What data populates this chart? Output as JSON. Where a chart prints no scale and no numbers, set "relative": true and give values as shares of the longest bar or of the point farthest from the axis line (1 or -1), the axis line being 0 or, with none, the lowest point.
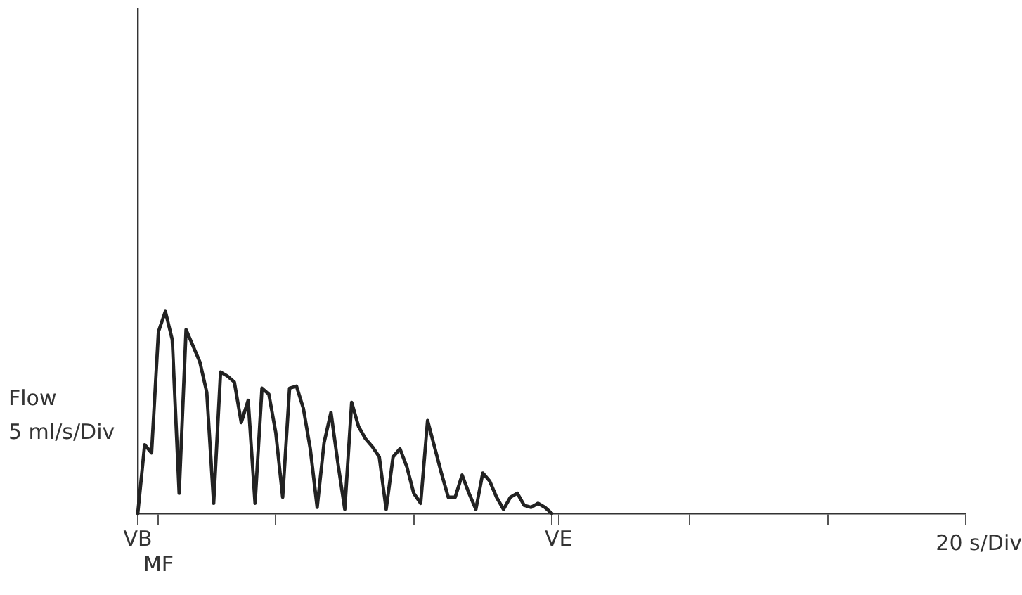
{
  "chart_data": {
    "type": "line",
    "relative": true,
    "ylabel": "Flow",
    "xlabel": "20 s/Div",
    "annotations": [
      "5 ml/s/Div"
    ],
    "color": "#222222",
    "marker": "none",
    "grid": false,
    "legend": false,
    "categories": [
      "VB",
      null,
      null,
      "MF",
      null,
      null,
      null,
      null,
      null,
      null,
      null,
      null,
      null,
      null,
      null,
      null,
      null,
      null,
      null,
      null,
      null,
      null,
      null,
      null,
      null,
      null,
      null,
      null,
      null,
      null,
      null,
      null,
      null,
      null,
      null,
      null,
      null,
      null,
      null,
      null,
      null,
      null,
      null,
      null,
      null,
      null,
      null,
      null,
      null,
      null,
      null,
      null,
      null,
      null,
      null,
      null,
      null,
      null,
      null,
      null,
      null,
      "VE",
      null,
      null,
      null,
      null,
      null,
      null,
      null,
      null,
      null,
      null,
      null,
      null,
      null,
      null,
      null,
      null,
      null,
      null,
      null,
      null,
      null,
      null,
      null,
      null,
      null,
      null,
      null,
      null,
      null,
      null,
      null,
      null,
      null,
      null,
      null,
      null,
      null,
      null,
      null,
      null,
      null,
      null,
      null,
      null,
      null,
      null,
      null,
      null,
      null,
      null,
      null,
      null,
      null,
      null,
      null,
      null,
      null,
      null,
      null
    ],
    "values": [
      0,
      0.34,
      0.3,
      0.9,
      1,
      0.86,
      0.1,
      0.91,
      0.83,
      0.75,
      0.6,
      0.05,
      0.7,
      0.68,
      0.65,
      0.45,
      0.56,
      0.05,
      0.62,
      0.59,
      0.4,
      0.08,
      0.62,
      0.63,
      0.52,
      0.32,
      0.03,
      0.35,
      0.5,
      0.25,
      0.02,
      0.55,
      0.43,
      0.37,
      0.33,
      0.28,
      0.02,
      0.28,
      0.32,
      0.23,
      0.1,
      0.05,
      0.46,
      0.33,
      0.2,
      0.08,
      0.08,
      0.19,
      0.1,
      0.02,
      0.2,
      0.16,
      0.08,
      0.02,
      0.08,
      0.1,
      0.04,
      0.03,
      0.05,
      0.03,
      0,
      null,
      null,
      null,
      null,
      null,
      null,
      null,
      null,
      null,
      null,
      null,
      null,
      null,
      null,
      null,
      null,
      null,
      null,
      null,
      null,
      null,
      null,
      null,
      null,
      null,
      null,
      null,
      null,
      null,
      null,
      null,
      null,
      null,
      null,
      null,
      null,
      null,
      null,
      null,
      null,
      null,
      null,
      null,
      null,
      null,
      null,
      null,
      null,
      null,
      null,
      null,
      null,
      null,
      null,
      null,
      null,
      null,
      null,
      null,
      null
    ]
  }
}
